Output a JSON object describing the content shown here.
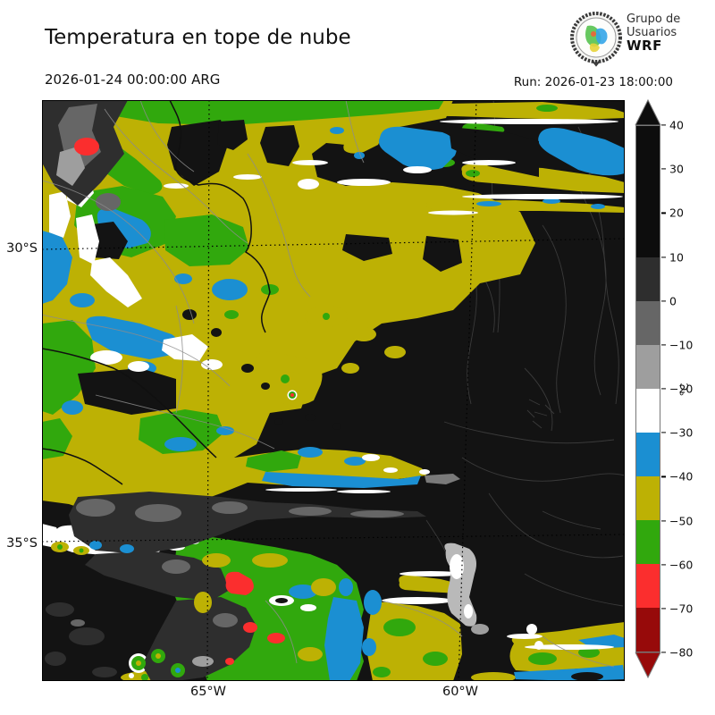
{
  "header": {
    "title": "Temperatura en tope de nube",
    "valid_time": "2026-01-24 00:00:00 ARG",
    "run": "Run: 2026-01-23 18:00:00",
    "logo": {
      "line1": "Grupo de",
      "line2": "Usuarios",
      "line3": "WRF"
    }
  },
  "map": {
    "y_ticks": [
      "30°S",
      "35°S"
    ],
    "x_ticks": [
      "65°W",
      "60°W"
    ]
  },
  "colorbar": {
    "unit": "°C",
    "tick_labels": [
      "40",
      "30",
      "20",
      "10",
      "0",
      "−10",
      "−20",
      "−30",
      "−40",
      "−50",
      "−60",
      "−70",
      "−80"
    ],
    "segments": [
      {
        "range": "10 to 40",
        "color": "#0d0d0d",
        "span": 3
      },
      {
        "range": "0 to 10",
        "color": "#2e2e2e",
        "span": 1
      },
      {
        "range": "-10 to 0",
        "color": "#666666",
        "span": 1
      },
      {
        "range": "-20 to -10",
        "color": "#9e9e9e",
        "span": 1
      },
      {
        "range": "-30 to -20",
        "color": "#ffffff",
        "span": 1
      },
      {
        "range": "-40 to -30",
        "color": "#1b8fd2",
        "span": 1
      },
      {
        "range": "-50 to -40",
        "color": "#bdb104",
        "span": 1
      },
      {
        "range": "-60 to -50",
        "color": "#31a80d",
        "span": 1
      },
      {
        "range": "-70 to -60",
        "color": "#fb2e2e",
        "span": 1
      },
      {
        "range": "-80 to -70",
        "color": "#970a0a",
        "span": 1
      }
    ],
    "arrow_top_color": "#0d0d0d",
    "arrow_bottom_color": "#970a0a"
  },
  "palette": {
    "bg": "#131313",
    "dkgray": "#2e2e2e",
    "mdgray": "#666666",
    "ltgray": "#9e9e9e",
    "white": "#ffffff",
    "blue": "#1b8fd2",
    "olive": "#bdb104",
    "green": "#31a80d",
    "red": "#fb2e2e",
    "darkred": "#970a0a",
    "prov": "#8c8c8c",
    "faint": "#3a3a3a"
  }
}
